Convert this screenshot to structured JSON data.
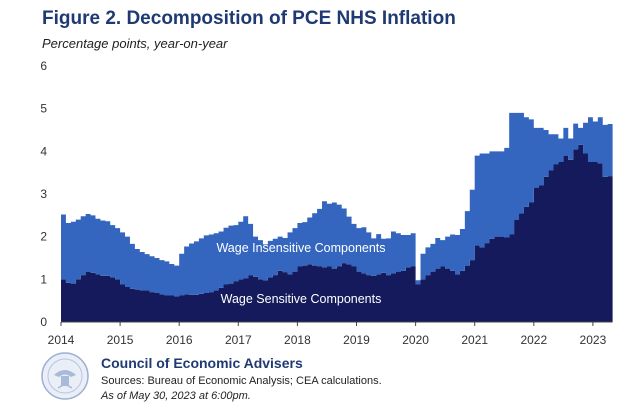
{
  "title": "Figure 2. Decomposition of PCE NHS Inflation",
  "subtitle": "Percentage points, year-on-year",
  "footer": {
    "organization": "Council of Economic Advisers",
    "sources": "Sources: Bureau of Economic Analysis; CEA calculations.",
    "as_of": "As of May 30, 2023 at 6:00pm."
  },
  "colors": {
    "wage_sensitive": "#141a5c",
    "wage_insensitive": "#3466bf",
    "title": "#1f3a73"
  },
  "chart_data": {
    "type": "area",
    "stacked": true,
    "title": "Figure 2. Decomposition of PCE NHS Inflation",
    "ylabel": "Percentage points, year-on-year",
    "ylim": [
      0,
      6
    ],
    "yticks": [
      "0",
      "1",
      "2",
      "3",
      "4",
      "5",
      "6"
    ],
    "xticks": [
      "2014",
      "2015",
      "2016",
      "2017",
      "2018",
      "2019",
      "2020",
      "2021",
      "2022",
      "2023"
    ],
    "x_start": "2014-01",
    "frequency": "monthly",
    "series": [
      {
        "name": "Wage Sensitive Components",
        "values": [
          1.0,
          0.92,
          0.9,
          1.0,
          1.1,
          1.18,
          1.15,
          1.12,
          1.08,
          1.08,
          1.05,
          1.0,
          0.88,
          0.82,
          0.78,
          0.76,
          0.74,
          0.74,
          0.7,
          0.68,
          0.65,
          0.62,
          0.62,
          0.6,
          0.62,
          0.65,
          0.64,
          0.64,
          0.66,
          0.68,
          0.7,
          0.74,
          0.8,
          0.88,
          0.9,
          0.95,
          1.0,
          1.02,
          1.1,
          1.06,
          1.0,
          0.98,
          1.05,
          1.1,
          1.2,
          1.17,
          1.12,
          1.18,
          1.3,
          1.32,
          1.35,
          1.32,
          1.3,
          1.28,
          1.3,
          1.25,
          1.3,
          1.38,
          1.35,
          1.3,
          1.18,
          1.14,
          1.1,
          1.08,
          1.12,
          1.15,
          1.1,
          1.14,
          1.18,
          1.2,
          1.28,
          1.3,
          0.88,
          1.0,
          1.1,
          1.18,
          1.25,
          1.3,
          1.25,
          1.2,
          1.12,
          1.2,
          1.32,
          1.45,
          1.8,
          1.75,
          1.85,
          1.95,
          2.0,
          2.0,
          1.98,
          2.05,
          2.4,
          2.55,
          2.7,
          2.8,
          3.15,
          3.2,
          3.4,
          3.55,
          3.7,
          3.75,
          3.9,
          3.8,
          4.05,
          4.15,
          3.95,
          3.75,
          3.75,
          3.72,
          3.4,
          3.42
        ]
      },
      {
        "name": "Wage Insensitive Components",
        "values": [
          1.52,
          1.4,
          1.45,
          1.4,
          1.38,
          1.35,
          1.35,
          1.3,
          1.3,
          1.28,
          1.22,
          1.2,
          1.22,
          1.18,
          1.05,
          0.95,
          0.9,
          0.85,
          0.84,
          0.82,
          0.8,
          0.8,
          0.74,
          0.72,
          0.98,
          1.12,
          1.2,
          1.25,
          1.3,
          1.35,
          1.35,
          1.34,
          1.32,
          1.33,
          1.36,
          1.32,
          1.35,
          1.46,
          1.2,
          0.94,
          0.92,
          0.84,
          0.85,
          0.85,
          0.8,
          0.8,
          0.98,
          1.02,
          1.02,
          1.02,
          1.1,
          1.23,
          1.35,
          1.55,
          1.47,
          1.55,
          1.45,
          1.28,
          1.12,
          1.0,
          1.02,
          1.08,
          1.0,
          0.88,
          0.94,
          0.8,
          0.86,
          0.98,
          0.9,
          0.84,
          0.76,
          0.78,
          0.1,
          0.6,
          0.65,
          0.65,
          0.72,
          0.62,
          0.75,
          0.85,
          0.92,
          0.98,
          1.28,
          1.65,
          2.1,
          2.2,
          2.1,
          2.05,
          2.0,
          2.0,
          2.1,
          2.85,
          2.5,
          2.35,
          2.1,
          1.95,
          1.4,
          1.35,
          1.1,
          0.85,
          0.7,
          0.55,
          0.65,
          0.5,
          0.6,
          0.4,
          0.72,
          1.05,
          0.95,
          1.08,
          1.22,
          1.22
        ]
      }
    ],
    "area_labels": [
      "Wage Insensitive Components",
      "Wage Sensitive Components"
    ]
  }
}
